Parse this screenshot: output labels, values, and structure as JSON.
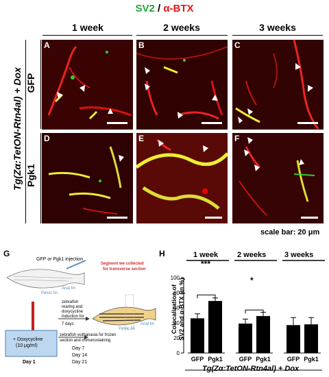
{
  "figure": {
    "title_sv2": "SV2",
    "title_sep": " / ",
    "title_btx": "α-BTX",
    "columns": [
      "1 week",
      "2 weeks",
      "3 weeks"
    ],
    "row_group_label": "Tg(Zα:TetON-Rtn4al) + Dox",
    "rows": [
      "GFP",
      "Pgk1"
    ],
    "panel_letters": [
      "A",
      "B",
      "C",
      "D",
      "E",
      "F"
    ],
    "scale_bar_label": "scale bar: 20 μm",
    "colors": {
      "sv2": "#22a53a",
      "btx": "#e01818",
      "background": "#2a0000"
    }
  },
  "schematic": {
    "letter": "G",
    "injection_label": "GFP or Pgk1 injection",
    "anal_fin_label": "Anal fin",
    "pelvic_fin_label": "Pelvic fin",
    "segment_label_1": "Segment  we collected",
    "segment_label_2": "for transverse section",
    "rearing_1": "zebrafish",
    "rearing_2": "rearing and",
    "rearing_3": "doxycycline",
    "rearing_4": "induction for",
    "rearing_5": "7 days",
    "dox_1": "+ Doxycycline",
    "dox_2": "(10 μg/ml)",
    "day1": "Day 1",
    "anal_fin_label2": "Anal fin",
    "pelvic_fin_label2": "Pelvic fin",
    "euth_1": "zebrafish euthanasia for frozen",
    "euth_2": "section and immunostaining",
    "day7": "Day 7",
    "day14": "Day 14",
    "day21": "Day 21"
  },
  "bar_chart": {
    "letter": "H",
    "ylabel_1": "Colocalization of",
    "ylabel_2": "SV2 and α-BTX (in %)",
    "groups": [
      "1 week",
      "2 weeks",
      "3 weeks"
    ],
    "sig_1week": "***",
    "sig_2weeks": "*",
    "xlabel": "Tg(Zα:TetON-Rtn4al) + Dox",
    "ticks": [
      "0",
      "20",
      "40",
      "60",
      "80",
      "100"
    ]
  },
  "chart_data": {
    "type": "bar",
    "categories": [
      "1 week",
      "2 weeks",
      "3 weeks"
    ],
    "series": [
      {
        "name": "GFP",
        "values": [
          46,
          39,
          37
        ],
        "errors": [
          6,
          6,
          10
        ]
      },
      {
        "name": "Pgk1",
        "values": [
          69,
          49,
          38
        ],
        "errors": [
          4,
          5,
          9
        ]
      }
    ],
    "xlabel": "Tg(Zα:TetON-Rtn4al) + Dox",
    "ylabel": "Colocalization of SV2 and α-BTX (in %)",
    "ylim": [
      0,
      100
    ],
    "yticks": [
      0,
      20,
      40,
      60,
      80,
      100
    ],
    "bar_color": "#000000",
    "grid": false
  }
}
